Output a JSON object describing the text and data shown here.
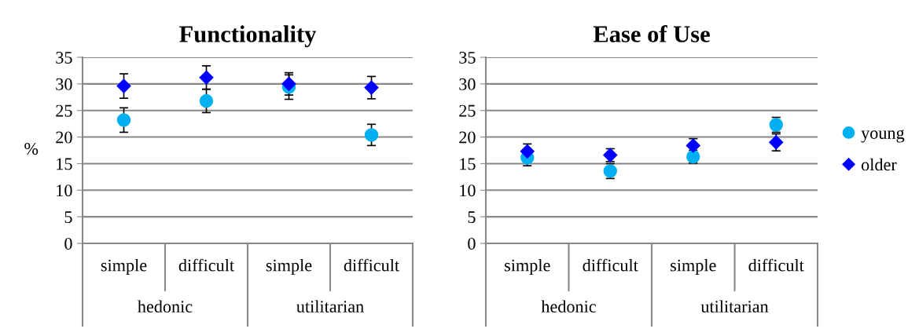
{
  "chart_data": [
    {
      "type": "scatter",
      "title": "Functionality",
      "ylabel": "%",
      "categories": [
        "simple",
        "difficult",
        "simple",
        "difficult"
      ],
      "annotations": [
        "hedonic",
        "utilitarian"
      ],
      "ylim": [
        0,
        35
      ],
      "yticks": [
        0,
        5,
        10,
        15,
        20,
        25,
        30,
        35
      ],
      "grid": "y",
      "legend": false,
      "series": [
        {
          "color": "#00b0f0",
          "marker": "circle",
          "values": [
            23.2,
            26.8,
            29.4,
            20.4
          ],
          "errors": [
            2.3,
            2.2,
            2.3,
            2.0
          ]
        },
        {
          "color": "#0000ff",
          "marker": "diamond",
          "values": [
            29.6,
            31.2,
            30.0,
            29.3
          ],
          "errors": [
            2.3,
            2.2,
            2.1,
            2.1
          ]
        }
      ]
    },
    {
      "type": "scatter",
      "title": "Ease of Use",
      "categories": [
        "simple",
        "difficult",
        "simple",
        "difficult"
      ],
      "annotations": [
        "hedonic",
        "utilitarian"
      ],
      "ylim": [
        0,
        35
      ],
      "yticks": [
        0,
        5,
        10,
        15,
        20,
        25,
        30,
        35
      ],
      "grid": "y",
      "legend": "right",
      "series": [
        {
          "name": "young",
          "color": "#00b0f0",
          "marker": "circle",
          "values": [
            16.1,
            13.6,
            16.3,
            22.3
          ],
          "errors": [
            1.5,
            1.4,
            1.2,
            1.4
          ]
        },
        {
          "name": "older",
          "color": "#0000ff",
          "marker": "diamond",
          "values": [
            17.3,
            16.6,
            18.4,
            19.0
          ],
          "errors": [
            1.4,
            1.2,
            1.3,
            1.6
          ]
        }
      ]
    }
  ]
}
